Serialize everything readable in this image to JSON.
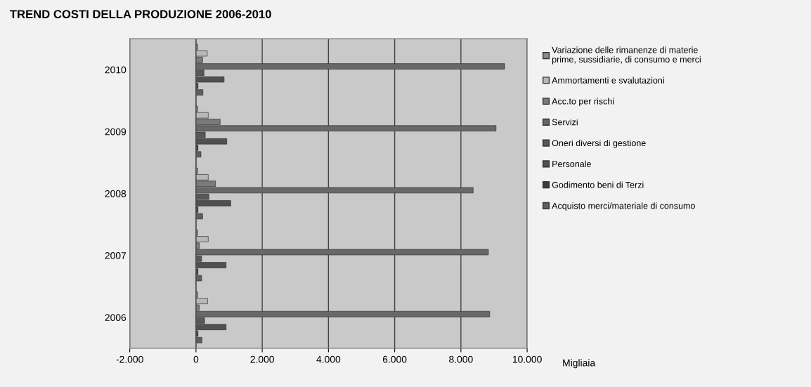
{
  "chart_data": {
    "type": "bar",
    "orientation": "horizontal",
    "title": "TREND COSTI DELLA PRODUZIONE 2006-2010",
    "xlabel": "Migliaia",
    "categories": [
      "2010",
      "2009",
      "2008",
      "2007",
      "2006"
    ],
    "series": [
      {
        "name": "Variazione delle rimanenze di materie\nprime, sussidiarie, di consumo e merci",
        "color": "#8c8c8c",
        "values": [
          50,
          50,
          50,
          50,
          50
        ]
      },
      {
        "name": "Ammortamenti e svalutazioni",
        "color": "#b8b8b8",
        "values": [
          340,
          370,
          370,
          370,
          350
        ]
      },
      {
        "name": "Acc.to per rischi",
        "color": "#7a7a7a",
        "values": [
          200,
          730,
          590,
          100,
          100
        ]
      },
      {
        "name": "Servizi",
        "color": "#686868",
        "values": [
          9320,
          9060,
          8370,
          8830,
          8870
        ]
      },
      {
        "name": "Oneri diversi di gestione",
        "color": "#585858",
        "values": [
          240,
          280,
          390,
          170,
          260
        ]
      },
      {
        "name": "Personale",
        "color": "#505050",
        "values": [
          850,
          930,
          1050,
          910,
          910
        ]
      },
      {
        "name": "Godimento beni di Terzi",
        "color": "#3c3c3c",
        "values": [
          60,
          60,
          60,
          60,
          60
        ]
      },
      {
        "name": "Acquisto merci/materiale di consumo",
        "color": "#5e5e5e",
        "values": [
          210,
          150,
          200,
          170,
          180
        ]
      }
    ],
    "xlim": [
      -2000,
      10000
    ],
    "xticks": [
      {
        "value": -2000,
        "label": "-2.000"
      },
      0,
      {
        "value": 2000,
        "label": "2.000"
      },
      {
        "value": 4000,
        "label": "4.000"
      },
      {
        "value": 6000,
        "label": "6.000"
      },
      {
        "value": 8000,
        "label": "8.000"
      },
      {
        "value": 10000,
        "label": "10.000"
      }
    ],
    "grid": "x",
    "legend": "right"
  }
}
